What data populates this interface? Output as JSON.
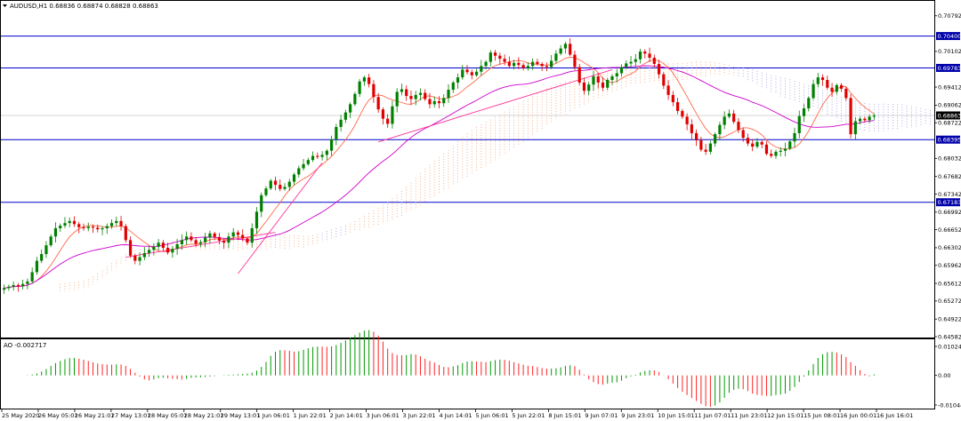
{
  "chart_data": {
    "type": "candlestick",
    "main": {
      "title": "AUDUSD,H1  0.68836 0.68874 0.68828 0.68863",
      "ylim": [
        0.64582,
        0.7096
      ],
      "y_ticks": [
        "0.70792",
        "0.70102",
        "0.69412",
        "0.69062",
        "0.68722",
        "0.68032",
        "0.67682",
        "0.67342",
        "0.66992",
        "0.66652",
        "0.66302",
        "0.65962",
        "0.65612",
        "0.65272",
        "0.64922",
        "0.64582"
      ],
      "horizontal_levels": [
        {
          "label": "0.70400",
          "value": 0.704
        },
        {
          "label": "0.69783",
          "value": 0.69783
        },
        {
          "label": "0.68395",
          "value": 0.68395
        },
        {
          "label": "0.67183",
          "value": 0.67183
        }
      ],
      "current_price": {
        "label": "0.68863",
        "value": 0.68863
      },
      "colors": {
        "bull": "#008000",
        "bear": "#e00000",
        "level_line": "#0000cc",
        "level_tag": "#0000aa",
        "ma_fast": "#ff6a4a",
        "ma_slow": "#cc00cc",
        "trend": "#ff3399",
        "ichimoku_cloud": "#f5a070",
        "ichimoku_cloud2": "#9999dd"
      },
      "candle_closes": [
        0.6552,
        0.6555,
        0.6558,
        0.6556,
        0.656,
        0.6565,
        0.6583,
        0.6605,
        0.6618,
        0.6635,
        0.6652,
        0.6668,
        0.6673,
        0.6678,
        0.6682,
        0.6676,
        0.667,
        0.6668,
        0.6671,
        0.6669,
        0.6666,
        0.6668,
        0.6672,
        0.6678,
        0.6682,
        0.6672,
        0.6645,
        0.6615,
        0.6605,
        0.6612,
        0.662,
        0.6626,
        0.6632,
        0.664,
        0.663,
        0.6621,
        0.6628,
        0.6637,
        0.6645,
        0.6652,
        0.6645,
        0.6638,
        0.6641,
        0.665,
        0.6658,
        0.6651,
        0.6644,
        0.664,
        0.6652,
        0.666,
        0.6655,
        0.6648,
        0.664,
        0.6668,
        0.67,
        0.6732,
        0.6745,
        0.676,
        0.6752,
        0.6744,
        0.6748,
        0.6758,
        0.6772,
        0.6784,
        0.6792,
        0.68,
        0.6808,
        0.6806,
        0.681,
        0.6818,
        0.684,
        0.6864,
        0.6878,
        0.6892,
        0.6908,
        0.6928,
        0.6952,
        0.696,
        0.6947,
        0.6922,
        0.6898,
        0.688,
        0.687,
        0.6904,
        0.6932,
        0.6937,
        0.6924,
        0.6918,
        0.6926,
        0.693,
        0.6918,
        0.6908,
        0.6914,
        0.691,
        0.692,
        0.6936,
        0.695,
        0.696,
        0.6975,
        0.697,
        0.6964,
        0.6971,
        0.6982,
        0.699,
        0.7008,
        0.7002,
        0.6996,
        0.699,
        0.6982,
        0.6988,
        0.6984,
        0.6978,
        0.6982,
        0.699,
        0.6986,
        0.6982,
        0.698,
        0.6992,
        0.7006,
        0.7016,
        0.7025,
        0.7004,
        0.698,
        0.695,
        0.6934,
        0.6946,
        0.6962,
        0.695,
        0.694,
        0.6955,
        0.6962,
        0.6968,
        0.698,
        0.6987,
        0.699,
        0.6995,
        0.701,
        0.7006,
        0.6998,
        0.6986,
        0.6966,
        0.6944,
        0.6926,
        0.6912,
        0.6895,
        0.6884,
        0.6869,
        0.6852,
        0.6838,
        0.682,
        0.6816,
        0.6832,
        0.685,
        0.6868,
        0.6884,
        0.689,
        0.6874,
        0.6858,
        0.6843,
        0.6832,
        0.6826,
        0.6835,
        0.683,
        0.6812,
        0.6808,
        0.6816,
        0.6818,
        0.6822,
        0.6836,
        0.6852,
        0.6885,
        0.69,
        0.692,
        0.6947,
        0.696,
        0.6955,
        0.694,
        0.6932,
        0.6945,
        0.6938,
        0.692,
        0.685,
        0.6875,
        0.688,
        0.6877,
        0.6884,
        0.6886
      ]
    },
    "oscillator": {
      "title": "AO -0.002717",
      "ylim": [
        -0.01044,
        0.01024
      ],
      "y_ticks": [
        "0.01024",
        "0.00",
        "-0.010443"
      ],
      "colors": {
        "up": "#009900",
        "down": "#ff2222"
      }
    },
    "x_ticks": [
      "25 May 2020",
      "26 May 05:01",
      "26 May 21:01",
      "27 May 13:01",
      "28 May 05:01",
      "28 May 21:01",
      "29 May 13:01",
      "1 Jun 06:01",
      "1 Jun 22:01",
      "2 Jun 14:01",
      "3 Jun 06:01",
      "3 Jun 22:01",
      "4 Jun 14:01",
      "5 Jun 06:01",
      "5 Jun 22:01",
      "8 Jun 15:01",
      "9 Jun 07:01",
      "9 Jun 23:01",
      "10 Jun 15:01",
      "11 Jun 07:01",
      "11 Jun 23:01",
      "12 Jun 15:01",
      "15 Jun 08:01",
      "16 Jun 00:01",
      "16 Jun 16:01"
    ]
  }
}
